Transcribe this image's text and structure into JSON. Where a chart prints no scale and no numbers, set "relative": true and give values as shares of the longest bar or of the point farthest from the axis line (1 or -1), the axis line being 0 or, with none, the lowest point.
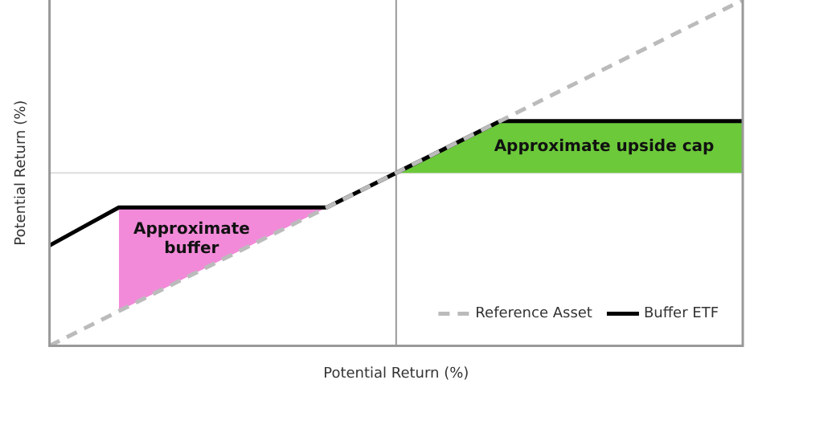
{
  "chart_data": {
    "type": "line",
    "relative": true,
    "xlabel": "Potential Return (%)",
    "ylabel": "Potential Return (%)",
    "categories": [
      null,
      null,
      null,
      null,
      null,
      null,
      null,
      null,
      null,
      null,
      null,
      null,
      null,
      null,
      null,
      null,
      null,
      null,
      null,
      null,
      null
    ],
    "series": [
      {
        "type": "area",
        "color": "#6cc93a",
        "values": [
          null,
          null,
          null,
          null,
          null,
          null,
          null,
          null,
          null,
          null,
          0,
          0.1,
          0.2,
          0.3,
          0.3,
          0.3,
          0.3,
          0.3,
          0.3,
          0.3,
          0.3
        ]
      },
      {
        "name": "Reference Asset",
        "color": "#bbbbbb",
        "line_style": "dashed",
        "values": [
          -1,
          -0.9,
          -0.8,
          -0.7,
          -0.6,
          -0.5,
          -0.4,
          -0.3,
          -0.2,
          -0.1,
          0,
          0.1,
          0.2,
          0.3,
          0.4,
          0.5,
          0.6,
          0.7,
          0.8,
          0.9,
          1
        ]
      },
      {
        "name": "Buffer ETF",
        "color": "#000000",
        "line_style": "solid",
        "values": [
          -0.42,
          -0.31,
          -0.2,
          -0.2,
          -0.2,
          -0.2,
          -0.2,
          -0.2,
          -0.2,
          -0.1,
          0,
          0.1,
          0.2,
          0.3,
          0.3,
          0.3,
          0.3,
          0.3,
          0.3,
          0.3,
          0.3
        ],
        "lower": [
          null,
          null,
          -0.8,
          -0.7,
          -0.6,
          -0.5,
          -0.4,
          -0.3,
          -0.2,
          null,
          null,
          null,
          null,
          null,
          null,
          null,
          null,
          null,
          null,
          null,
          null
        ],
        "upper": [
          null,
          null,
          -0.2,
          -0.2,
          -0.2,
          -0.2,
          -0.2,
          -0.2,
          -0.2,
          null,
          null,
          null,
          null,
          null,
          null,
          null,
          null,
          null,
          null,
          null,
          null
        ]
      }
    ],
    "annotations": [
      "Approximate\nbuffer",
      "Approximate upside cap"
    ],
    "ref_lines": [
      {
        "axis": "y",
        "value": 0,
        "color": "#dddddd"
      }
    ],
    "legend": "bottom right",
    "marker": "none",
    "grid": false
  }
}
